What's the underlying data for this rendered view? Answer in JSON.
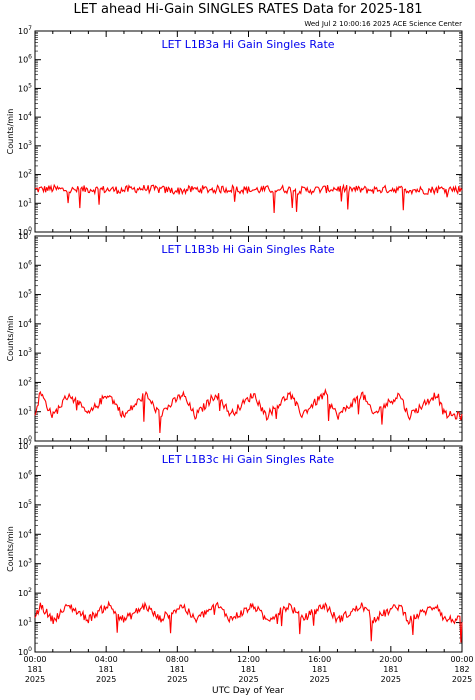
{
  "title": "LET ahead Hi-Gain SINGLES RATES Data for 2025-181",
  "timestamp": "Wed Jul  2 10:00:16 2025 ACE Science Center",
  "xlabel": "UTC Day of Year",
  "ylabel": "Counts/min",
  "colors": {
    "trace": "#ff0000",
    "panel_title": "#0000ee",
    "axes": "#000000"
  },
  "x_ticks": [
    {
      "time": "00:00",
      "day": "181",
      "year": "2025"
    },
    {
      "time": "04:00",
      "day": "181",
      "year": "2025"
    },
    {
      "time": "08:00",
      "day": "181",
      "year": "2025"
    },
    {
      "time": "12:00",
      "day": "181",
      "year": "2025"
    },
    {
      "time": "16:00",
      "day": "181",
      "year": "2025"
    },
    {
      "time": "20:00",
      "day": "181",
      "year": "2025"
    },
    {
      "time": "00:00",
      "day": "182",
      "year": "2025"
    }
  ],
  "y_tick_exponents": [
    "0",
    "1",
    "2",
    "3",
    "4",
    "5",
    "6",
    "7"
  ],
  "chart_data": [
    {
      "type": "line",
      "title": "LET L1B3a Hi Gain Singles Rate",
      "yscale": "log",
      "ylim": [
        1,
        10000000
      ],
      "xlim_hours": [
        0,
        24
      ],
      "series": [
        {
          "x_hours": [
            0,
            1,
            2,
            3,
            4,
            5,
            6,
            7,
            8,
            9,
            10,
            11,
            12,
            13,
            14,
            15,
            16,
            17,
            18,
            19,
            20,
            21,
            22,
            23,
            24
          ],
          "values": [
            30,
            32,
            28,
            31,
            30,
            29,
            33,
            30,
            27,
            31,
            30,
            32,
            29,
            30,
            31,
            28,
            30,
            33,
            30,
            29,
            31,
            30,
            28,
            32,
            30
          ]
        }
      ]
    },
    {
      "type": "line",
      "title": "LET L1B3b Hi Gain Singles Rate",
      "yscale": "log",
      "ylim": [
        1,
        10000000
      ],
      "xlim_hours": [
        0,
        24
      ],
      "series": [
        {
          "x_hours": [
            0,
            0.3,
            1,
            1.9,
            3,
            4.1,
            5,
            6.2,
            7,
            8.3,
            9,
            10.2,
            11,
            12.3,
            13,
            14.3,
            15,
            16.3,
            17,
            18.4,
            19,
            20.5,
            21,
            22.6,
            23,
            24
          ],
          "values": [
            8,
            45,
            7,
            40,
            8,
            42,
            7,
            40,
            8,
            40,
            7,
            42,
            8,
            40,
            7,
            40,
            8,
            42,
            7,
            40,
            8,
            40,
            7,
            42,
            8,
            7
          ]
        }
      ]
    },
    {
      "type": "line",
      "title": "LET L1B3c Hi Gain Singles Rate",
      "yscale": "log",
      "ylim": [
        1,
        10000000
      ],
      "xlim_hours": [
        0,
        24
      ],
      "series": [
        {
          "x_hours": [
            0,
            0.3,
            1,
            1.9,
            3,
            4.1,
            5,
            6.2,
            7,
            8.3,
            9,
            10.2,
            11,
            12.3,
            13,
            14.3,
            15,
            16.3,
            17,
            18.4,
            19,
            20.5,
            21,
            22.6,
            23,
            24
          ],
          "values": [
            13,
            40,
            12,
            38,
            13,
            40,
            12,
            38,
            13,
            38,
            12,
            40,
            13,
            38,
            12,
            38,
            13,
            40,
            12,
            38,
            13,
            38,
            12,
            40,
            13,
            12
          ]
        }
      ]
    }
  ]
}
